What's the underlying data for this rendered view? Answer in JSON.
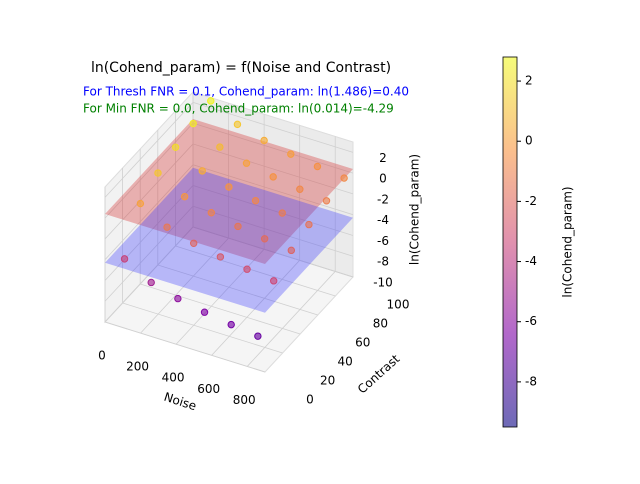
{
  "chart_data": {
    "type": "scatter3d",
    "title": "ln(Cohend_param) = f(Noise and Contrast)",
    "annotations": [
      {
        "text": "For Thresh FNR = 0.1, Cohend_param: ln(1.486)=0.40",
        "color": "#0000ff"
      },
      {
        "text": "For Min FNR = 0.0, Cohend_param: ln(0.014)=-4.29",
        "color": "#008000"
      }
    ],
    "xlabel": "Noise",
    "ylabel": "Contrast",
    "zlabel": "ln(Cohend_param)",
    "xlim": [
      0,
      900
    ],
    "xticks": [
      0,
      200,
      400,
      600,
      800
    ],
    "ylim": [
      0,
      100
    ],
    "yticks": [
      0,
      20,
      40,
      60,
      80,
      100
    ],
    "zlim": [
      -10,
      3
    ],
    "zticks": [
      -10,
      -8,
      -6,
      -4,
      -2,
      0,
      2
    ],
    "planes": [
      {
        "z": 0.4,
        "color": "#d62728"
      },
      {
        "z": -4.29,
        "color": "#3a3aff"
      }
    ],
    "series": [
      {
        "x": [
          100,
          100,
          100,
          100,
          100,
          100,
          250,
          250,
          250,
          250,
          250,
          250,
          400,
          400,
          400,
          400,
          400,
          400,
          550,
          550,
          550,
          550,
          550,
          550,
          700,
          700,
          700,
          700,
          700,
          700,
          850,
          850,
          850,
          850,
          850,
          850
        ],
        "y": [
          2,
          20,
          40,
          60,
          80,
          100,
          2,
          20,
          40,
          60,
          80,
          100,
          2,
          20,
          40,
          60,
          80,
          100,
          2,
          20,
          40,
          60,
          80,
          100,
          2,
          20,
          40,
          60,
          80,
          100,
          2,
          20,
          40,
          60,
          80,
          100
        ],
        "z": [
          -3.57,
          0.11,
          1.22,
          1.87,
          2.33,
          2.68,
          -5.04,
          -1.36,
          -0.25,
          0.4,
          0.86,
          1.22,
          -5.79,
          -2.11,
          -1.0,
          -0.35,
          0.11,
          0.47,
          -6.3,
          -2.62,
          -1.51,
          -0.86,
          -0.4,
          -0.04,
          -6.69,
          -3.0,
          -1.9,
          -1.25,
          -0.79,
          -0.43,
          -7.0,
          -3.32,
          -2.21,
          -1.56,
          -1.1,
          -0.74
        ]
      }
    ],
    "colorbar": {
      "label": "ln(Cohend_param)",
      "lim": [
        -9.5,
        2.8
      ],
      "ticks": [
        -8,
        -6,
        -4,
        -2,
        0,
        2
      ],
      "colors": [
        "#0d0887",
        "#7e03a8",
        "#cc4778",
        "#f89540",
        "#f0f921"
      ]
    }
  }
}
